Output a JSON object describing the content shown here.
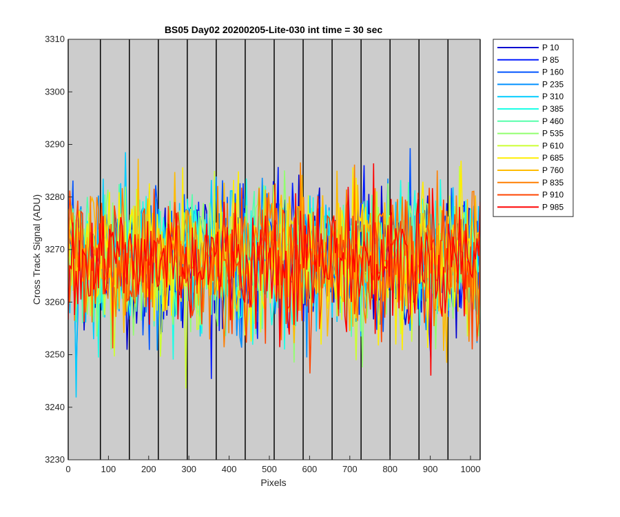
{
  "chart_data": {
    "type": "line",
    "title": "BS05 Day02 20200205-Lite-030 int time = 30 sec",
    "xlabel": "Pixels",
    "ylabel": "Cross Track Signal (ADU)",
    "xlim": [
      0,
      1024
    ],
    "ylim": [
      3230,
      3310
    ],
    "xticks": [
      0,
      100,
      200,
      300,
      400,
      500,
      600,
      700,
      800,
      900,
      1000
    ],
    "yticks": [
      3230,
      3240,
      3250,
      3260,
      3270,
      3280,
      3290,
      3300,
      3310
    ],
    "background": "#cccccc",
    "grid": false,
    "legend_location": "outside-top-right",
    "vertical_lines_x": [
      0,
      80,
      152,
      224,
      296,
      368,
      440,
      512,
      584,
      656,
      728,
      800,
      872,
      944,
      1024
    ],
    "signal_mean": 3268,
    "signal_noise_std": 6.5,
    "series": [
      {
        "name": "P 10",
        "color": "#0000d0",
        "mean": 3268
      },
      {
        "name": "P 85",
        "color": "#0019ff",
        "mean": 3268
      },
      {
        "name": "P 160",
        "color": "#0054ff",
        "mean": 3268
      },
      {
        "name": "P 235",
        "color": "#0090ff",
        "mean": 3268
      },
      {
        "name": "P 310",
        "color": "#00ccff",
        "mean": 3268
      },
      {
        "name": "P 385",
        "color": "#1affe6",
        "mean": 3268
      },
      {
        "name": "P 460",
        "color": "#55ffaa",
        "mean": 3268
      },
      {
        "name": "P 535",
        "color": "#91ff6e",
        "mean": 3268
      },
      {
        "name": "P 610",
        "color": "#ccff33",
        "mean": 3268
      },
      {
        "name": "P 685",
        "color": "#ffee00",
        "mean": 3268
      },
      {
        "name": "P 760",
        "color": "#ffbb00",
        "mean": 3268
      },
      {
        "name": "P 835",
        "color": "#ff7f00",
        "mean": 3268
      },
      {
        "name": "P 910",
        "color": "#ff4400",
        "mean": 3268
      },
      {
        "name": "P 985",
        "color": "#ff0000",
        "mean": 3268
      }
    ]
  }
}
